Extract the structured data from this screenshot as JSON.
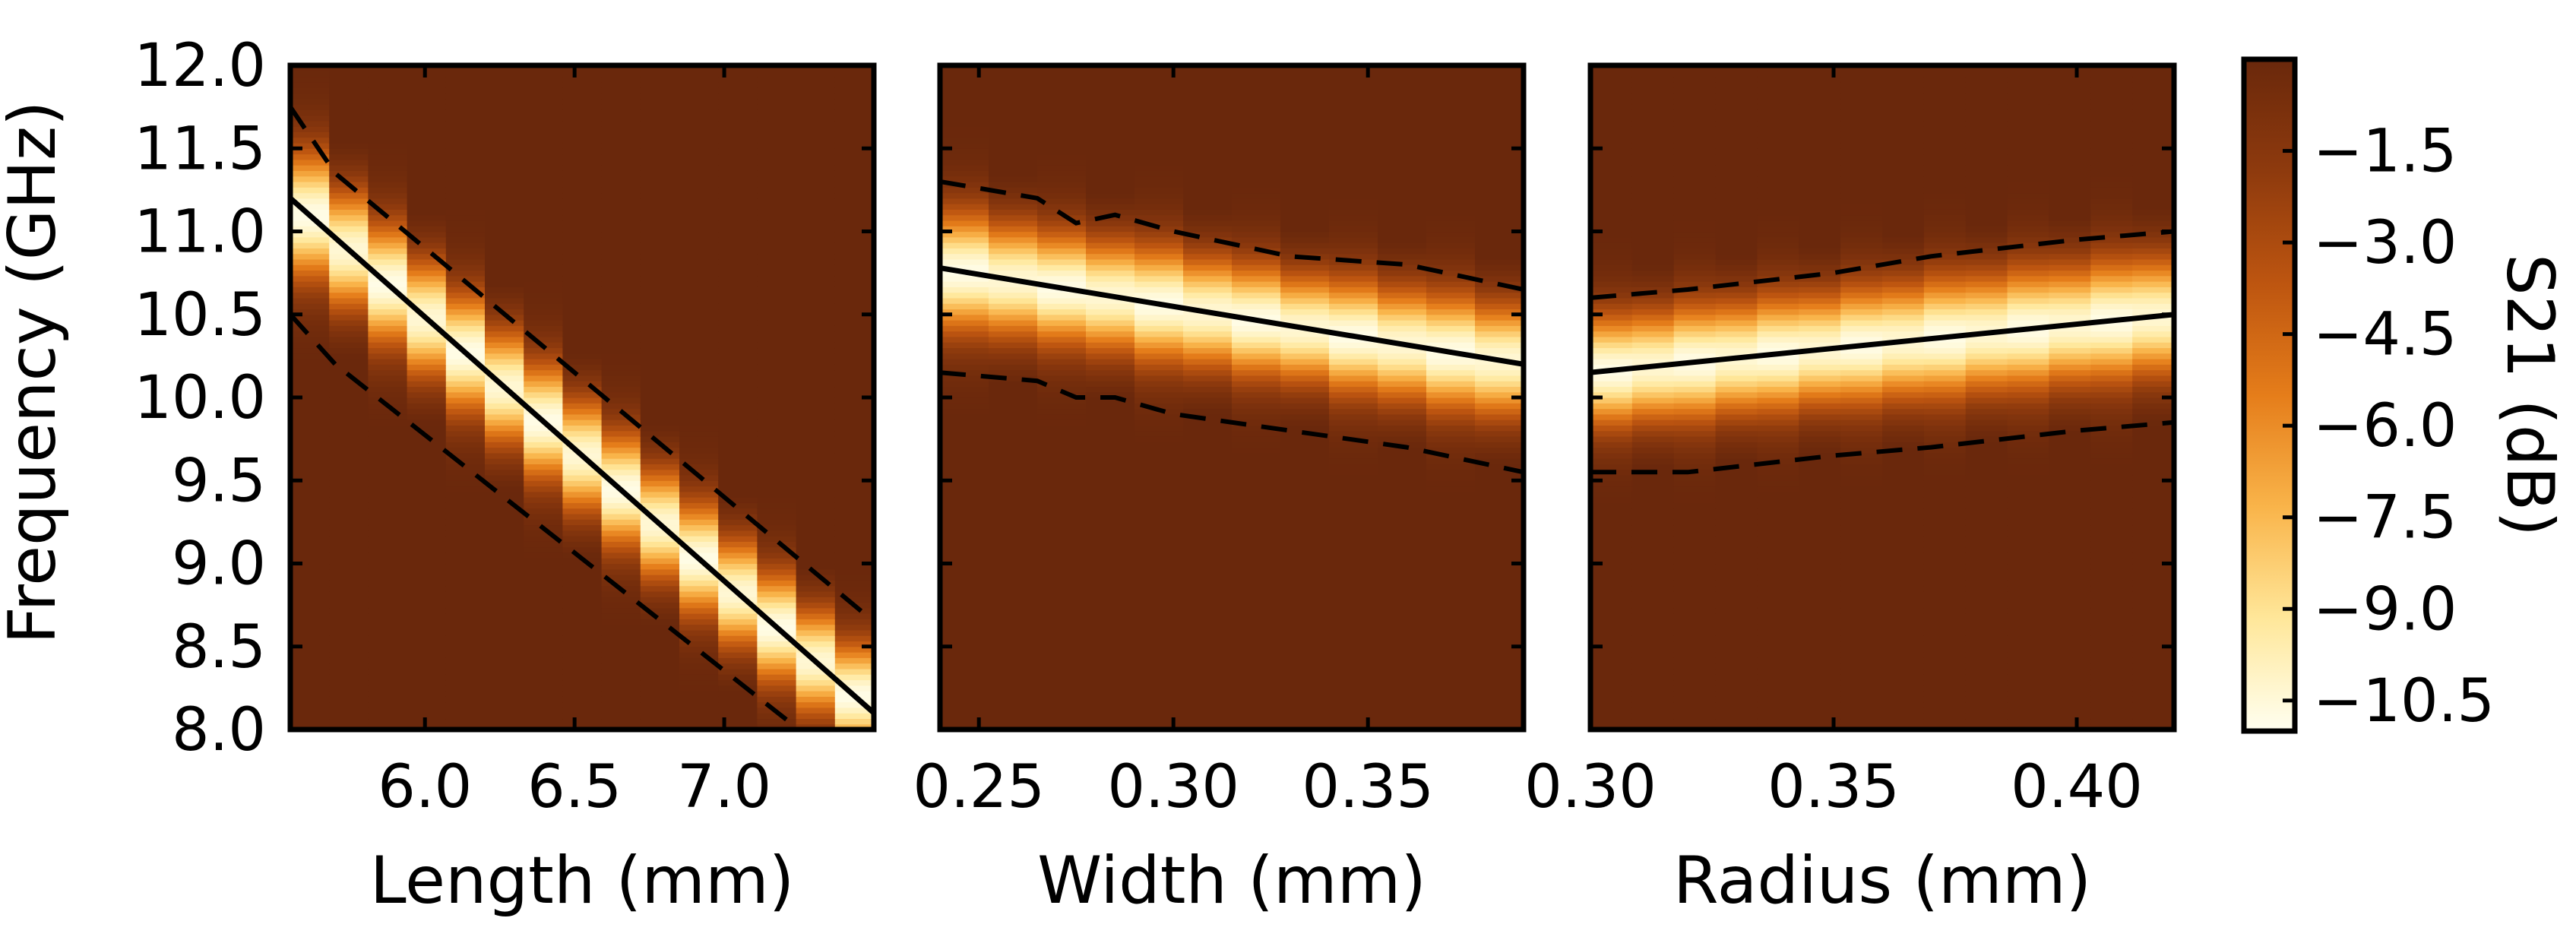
{
  "chart_data": [
    {
      "type": "heatmap",
      "xlabel": "Length (mm)",
      "ylabel": "Frequency (GHz)",
      "xlim": [
        5.55,
        7.5
      ],
      "ylim": [
        8.0,
        12.0
      ],
      "xticks": [
        6.0,
        6.5,
        7.0
      ],
      "xtick_labels": [
        "6.0",
        "6.5",
        "7.0"
      ],
      "yticks": [
        8.0,
        8.5,
        9.0,
        9.5,
        10.0,
        10.5,
        11.0,
        11.5,
        12.0
      ],
      "ytick_labels": [
        "8.0",
        "8.5",
        "9.0",
        "9.5",
        "10.0",
        "10.5",
        "11.0",
        "11.5",
        "12.0"
      ],
      "columns": 15,
      "resonance_line": {
        "x": [
          5.55,
          7.5
        ],
        "y": [
          11.2,
          8.1
        ]
      },
      "upper_dashed": {
        "x": [
          5.55,
          5.7,
          7.5
        ],
        "y": [
          11.75,
          11.35,
          8.65
        ]
      },
      "lower_dashed": {
        "x": [
          5.55,
          5.7,
          7.25
        ],
        "y": [
          10.5,
          10.2,
          8.0
        ]
      }
    },
    {
      "type": "heatmap",
      "xlabel": "Width (mm)",
      "xlim": [
        0.24,
        0.39
      ],
      "ylim": [
        8.0,
        12.0
      ],
      "xticks": [
        0.25,
        0.3,
        0.35
      ],
      "xtick_labels": [
        "0.25",
        "0.30",
        "0.35"
      ],
      "columns": 12,
      "resonance_line": {
        "x": [
          0.24,
          0.39
        ],
        "y": [
          10.78,
          10.2
        ]
      },
      "upper_dashed": {
        "x": [
          0.24,
          0.265,
          0.275,
          0.285,
          0.3,
          0.33,
          0.36,
          0.39
        ],
        "y": [
          11.3,
          11.2,
          11.05,
          11.1,
          11.0,
          10.85,
          10.8,
          10.65
        ]
      },
      "lower_dashed": {
        "x": [
          0.24,
          0.265,
          0.275,
          0.285,
          0.3,
          0.33,
          0.36,
          0.39
        ],
        "y": [
          10.15,
          10.1,
          10.0,
          10.0,
          9.9,
          9.8,
          9.7,
          9.55
        ]
      }
    },
    {
      "type": "heatmap",
      "xlabel": "Radius (mm)",
      "xlim": [
        0.3,
        0.42
      ],
      "ylim": [
        8.0,
        12.0
      ],
      "xticks": [
        0.3,
        0.35,
        0.4
      ],
      "xtick_labels": [
        "0.30",
        "0.35",
        "0.40"
      ],
      "columns": 14,
      "resonance_line": {
        "x": [
          0.3,
          0.42
        ],
        "y": [
          10.15,
          10.5
        ]
      },
      "upper_dashed": {
        "x": [
          0.3,
          0.32,
          0.35,
          0.37,
          0.4,
          0.42
        ],
        "y": [
          10.6,
          10.65,
          10.75,
          10.85,
          10.95,
          11.0
        ]
      },
      "lower_dashed": {
        "x": [
          0.3,
          0.32,
          0.35,
          0.37,
          0.4,
          0.42
        ],
        "y": [
          9.55,
          9.55,
          9.65,
          9.7,
          9.8,
          9.85
        ]
      }
    }
  ],
  "colorbar": {
    "label": "S21 (dB)",
    "range": [
      -11.0,
      0.0
    ],
    "ticks": [
      -1.5,
      -3.0,
      -4.5,
      -6.0,
      -7.5,
      -9.0,
      -10.5
    ],
    "tick_labels": [
      "−1.5",
      "−3.0",
      "−4.5",
      "−6.0",
      "−7.5",
      "−9.0",
      "−10.5"
    ],
    "colors": [
      "#fffff0",
      "#ffe79a",
      "#f9b44a",
      "#e57d1a",
      "#bd5510",
      "#8e3a0d",
      "#6a280c"
    ]
  }
}
